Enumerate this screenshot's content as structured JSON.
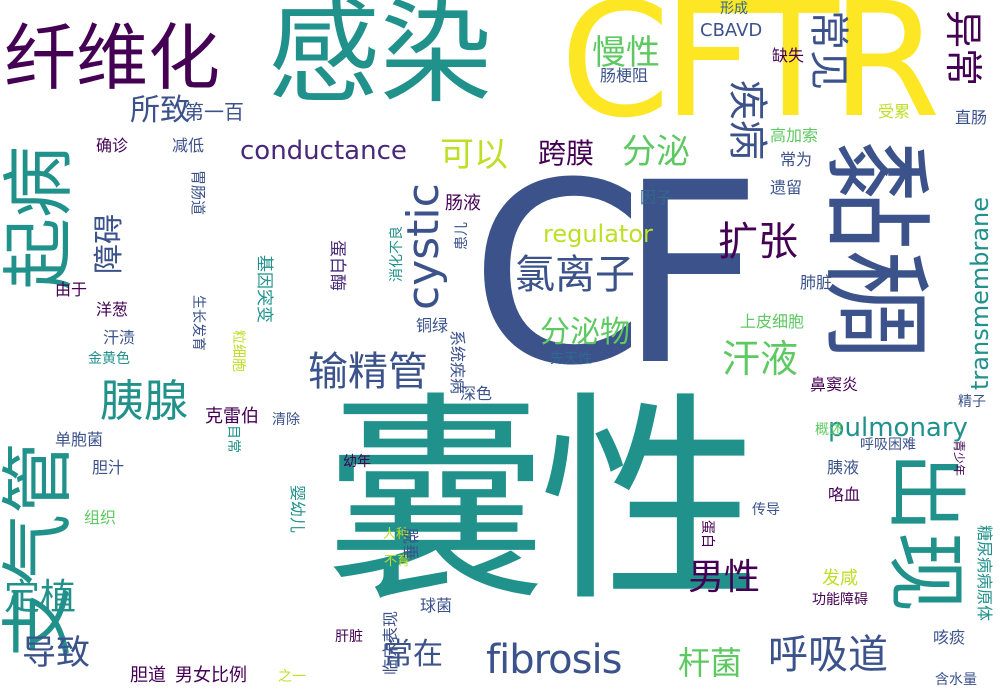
{
  "palette": {
    "teal": "#21918c",
    "dark_purple": "#440154",
    "yellow_green": "#bddf26",
    "navy_blue": "#3b528b",
    "green": "#5ec962",
    "blue": "#31688e",
    "indigo": "#482878",
    "seafoam": "#2a9d8f",
    "yellow": "#fde725"
  },
  "words": [
    "囊性",
    "CF",
    "CFTR",
    "黏稠",
    "感染",
    "纤维化",
    "起病",
    "支气管",
    "出现",
    "异常",
    "常见",
    "疾病",
    "cystic",
    "扩张",
    "氯离子",
    "输精管",
    "胰腺",
    "分泌物",
    "fibrosis",
    "呼吸道",
    "杆菌",
    "汗液",
    "男性",
    "慢性",
    "分泌",
    "可以",
    "跨膜",
    "所致",
    "障碍",
    "第一百",
    "conductance",
    "regulator",
    "transmembrane",
    "pulmonary",
    "定植",
    "导致",
    "常在",
    "肠液",
    "CBAVD",
    "缺失",
    "形成",
    "肠梗阻",
    "受累",
    "直肠",
    "高加索",
    "常为",
    "遗留",
    "因子",
    "确诊",
    "减低",
    "胃肠道",
    "基因突变",
    "蛋白酶",
    "消化不良",
    "患儿",
    "肺脏",
    "上皮细胞",
    "由于",
    "洋葱",
    "铜绿",
    "汗渍",
    "金黄色",
    "生长发育",
    "粒细胞",
    "先天性",
    "深色",
    "系统疾病",
    "鼻窦炎",
    "精子",
    "克雷伯",
    "清除",
    "单胞菌",
    "目常",
    "幼年",
    "概述",
    "呼吸困难",
    "青少年",
    "胆汁",
    "胰液",
    "咯血",
    "婴幼儿",
    "组织",
    "传导",
    "人种",
    "不育",
    "脱垂",
    "蛋白",
    "发咸",
    "功能障碍",
    "糖尿病病原体",
    "临床表现",
    "球菌",
    "肝脏",
    "咳痰",
    "胆道",
    "男女比例",
    "之一",
    "含水量"
  ]
}
